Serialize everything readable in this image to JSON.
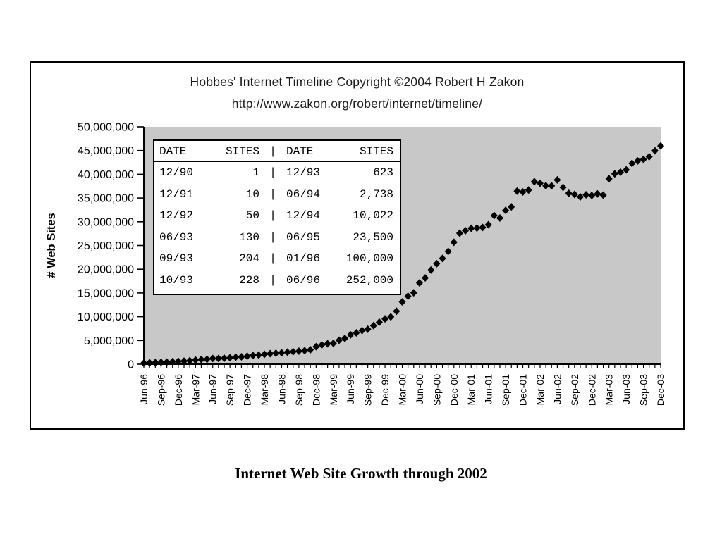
{
  "page": {
    "caption": "Internet Web Site Growth through 2002"
  },
  "chart_data": {
    "type": "scatter",
    "title": "Hobbes' Internet Timeline Copyright ©2004 Robert H Zakon",
    "subtitle": "http://www.zakon.org/robert/internet/timeline/",
    "ylabel": "# Web Sites",
    "xlabel": "",
    "ylim": [
      0,
      50000000
    ],
    "ytick_interval": 5000000,
    "grid": false,
    "legend": "none",
    "marker": "diamond",
    "marker_color": "#000000",
    "plot_background": "#c8c8c8",
    "x_tick_every": 3,
    "x": [
      "Jun-96",
      "Jul-96",
      "Aug-96",
      "Sep-96",
      "Oct-96",
      "Nov-96",
      "Dec-96",
      "Jan-97",
      "Feb-97",
      "Mar-97",
      "Apr-97",
      "May-97",
      "Jun-97",
      "Jul-97",
      "Aug-97",
      "Sep-97",
      "Oct-97",
      "Nov-97",
      "Dec-97",
      "Jan-98",
      "Feb-98",
      "Mar-98",
      "Apr-98",
      "May-98",
      "Jun-98",
      "Jul-98",
      "Aug-98",
      "Sep-98",
      "Oct-98",
      "Nov-98",
      "Dec-98",
      "Jan-99",
      "Feb-99",
      "Mar-99",
      "Apr-99",
      "May-99",
      "Jun-99",
      "Jul-99",
      "Aug-99",
      "Sep-99",
      "Oct-99",
      "Nov-99",
      "Dec-99",
      "Jan-00",
      "Feb-00",
      "Mar-00",
      "Apr-00",
      "May-00",
      "Jun-00",
      "Jul-00",
      "Aug-00",
      "Sep-00",
      "Oct-00",
      "Nov-00",
      "Dec-00",
      "Jan-01",
      "Feb-01",
      "Mar-01",
      "Apr-01",
      "May-01",
      "Jun-01",
      "Jul-01",
      "Aug-01",
      "Sep-01",
      "Oct-01",
      "Nov-01",
      "Dec-01",
      "Jan-02",
      "Feb-02",
      "Mar-02",
      "Apr-02",
      "May-02",
      "Jun-02",
      "Jul-02",
      "Aug-02",
      "Sep-02",
      "Oct-02",
      "Nov-02",
      "Dec-02",
      "Jan-03",
      "Feb-03",
      "Mar-03",
      "Apr-03",
      "May-03",
      "Jun-03",
      "Jul-03",
      "Aug-03",
      "Sep-03",
      "Oct-03",
      "Nov-03",
      "Dec-03"
    ],
    "series": [
      {
        "name": "# Web Sites",
        "values_millions": [
          0.25,
          0.3,
          0.34,
          0.4,
          0.44,
          0.53,
          0.6,
          0.65,
          0.74,
          0.88,
          1.0,
          1.04,
          1.2,
          1.2,
          1.27,
          1.36,
          1.47,
          1.55,
          1.68,
          1.83,
          1.92,
          2.08,
          2.22,
          2.31,
          2.41,
          2.55,
          2.63,
          2.74,
          2.85,
          3.04,
          3.69,
          4.06,
          4.3,
          4.39,
          5.04,
          5.43,
          6.18,
          6.6,
          7.08,
          7.37,
          8.12,
          8.84,
          9.56,
          9.95,
          11.16,
          13.11,
          14.32,
          15.05,
          17.12,
          18.17,
          19.82,
          21.17,
          22.28,
          23.75,
          25.68,
          27.59,
          28.12,
          28.61,
          28.67,
          28.81,
          29.38,
          31.3,
          30.78,
          32.4,
          33.14,
          36.46,
          36.28,
          36.69,
          38.44,
          38.12,
          37.59,
          37.57,
          38.81,
          37.24,
          35.99,
          35.76,
          35.23,
          35.69,
          35.54,
          35.86,
          35.6,
          39.05,
          40.1,
          40.44,
          40.94,
          42.3,
          42.81,
          43.14,
          43.7,
          44.95,
          45.98
        ]
      }
    ]
  },
  "inset_table": {
    "headers": [
      "DATE",
      "SITES",
      "|",
      "DATE",
      "SITES"
    ],
    "rows": [
      [
        "12/90",
        "1",
        "|",
        "12/93",
        "623"
      ],
      [
        "12/91",
        "10",
        "|",
        "06/94",
        "2,738"
      ],
      [
        "12/92",
        "50",
        "|",
        "12/94",
        "10,022"
      ],
      [
        "06/93",
        "130",
        "|",
        "06/95",
        "23,500"
      ],
      [
        "09/93",
        "204",
        "|",
        "01/96",
        "100,000"
      ],
      [
        "10/93",
        "228",
        "|",
        "06/96",
        "252,000"
      ]
    ]
  }
}
